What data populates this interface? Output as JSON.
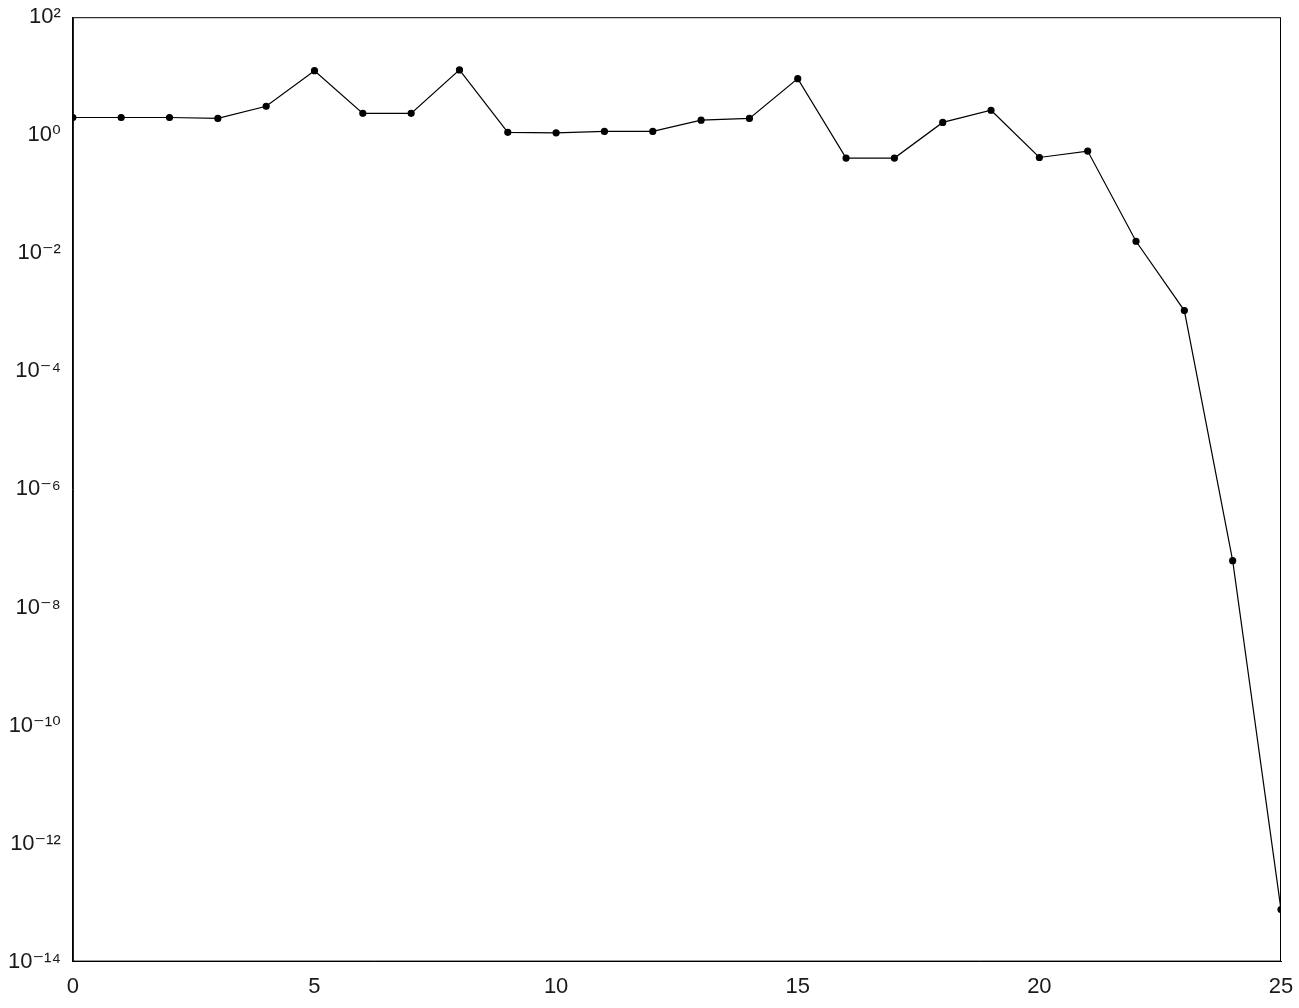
{
  "chart_data": {
    "type": "line",
    "x": [
      0,
      1,
      2,
      3,
      4,
      5,
      6,
      7,
      8,
      9,
      10,
      11,
      12,
      13,
      14,
      15,
      16,
      17,
      18,
      19,
      20,
      21,
      22,
      23,
      24,
      25
    ],
    "values": [
      2.0,
      2.0,
      2.0,
      1.93,
      3.1,
      12.4,
      2.35,
      2.35,
      12.8,
      1.12,
      1.1,
      1.16,
      1.16,
      1.8,
      1.93,
      9.1,
      0.41,
      0.41,
      1.65,
      2.65,
      0.42,
      0.54,
      0.016,
      0.00107,
      6.2e-08,
      7.6e-14
    ],
    "color": "#000000",
    "marker": "circle",
    "line_style": "solid",
    "xlim": [
      0,
      25
    ],
    "xticks": [
      0,
      5,
      10,
      15,
      20,
      25
    ],
    "ylim": [
      1e-14,
      100
    ],
    "yticks": [
      {
        "value": 100,
        "label": "10²"
      },
      {
        "value": 1,
        "label": "10⁰"
      },
      {
        "value": 0.01,
        "label": "10⁻²"
      },
      {
        "value": 0.0001,
        "label": "10⁻⁴"
      },
      {
        "value": 1e-06,
        "label": "10⁻⁶"
      },
      {
        "value": 1e-08,
        "label": "10⁻⁸"
      },
      {
        "value": 1e-10,
        "label": "10⁻¹⁰"
      },
      {
        "value": 1e-12,
        "label": "10⁻¹²"
      },
      {
        "value": 1e-14,
        "label": "10⁻¹⁴"
      }
    ],
    "log": "y",
    "grid": false
  }
}
